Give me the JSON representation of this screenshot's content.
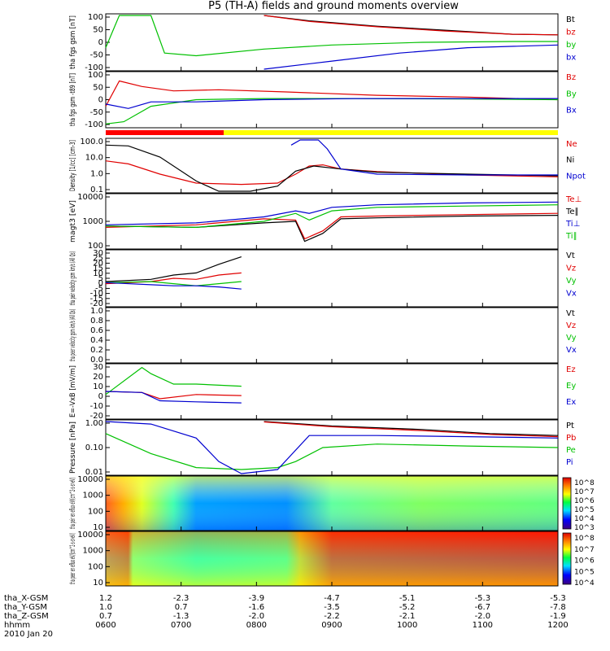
{
  "title": "P5 (TH-A) fields and ground moments overview",
  "colors": {
    "black": "#000000",
    "red": "#e00000",
    "green": "#00c000",
    "blue": "#0000d0",
    "yellow": "#ffff00"
  },
  "xaxis": {
    "times": [
      "0600",
      "0700",
      "0800",
      "0900",
      "1000",
      "1100",
      "1200"
    ],
    "rows": [
      {
        "label": "tha_X-GSM",
        "values": [
          "1.2",
          "-2.3",
          "-3.9",
          "-4.7",
          "-5.1",
          "-5.3",
          "-5.3"
        ]
      },
      {
        "label": "tha_Y-GSM",
        "values": [
          "1.0",
          "0.7",
          "-1.6",
          "-3.5",
          "-5.2",
          "-6.7",
          "-7.8"
        ]
      },
      {
        "label": "tha_Z-GSM",
        "values": [
          "0.7",
          "-1.3",
          "-2.0",
          "-2.2",
          "-2.1",
          "-2.0",
          "-1.9"
        ]
      }
    ],
    "hhmm_label": "hhmm",
    "date": "2010 Jan 20"
  },
  "chart_data": [
    {
      "type": "line",
      "ylabel": "tha fgs gsm [nT]",
      "yticks": [
        "100",
        "50",
        "0",
        "-50",
        "-100"
      ],
      "ylim": [
        -100,
        100
      ],
      "legend": [
        {
          "name": "Bt",
          "color": "black"
        },
        {
          "name": "bz",
          "color": "red"
        },
        {
          "name": "by",
          "color": "green"
        },
        {
          "name": "bx",
          "color": "blue"
        }
      ],
      "series": [
        {
          "name": "Bt",
          "color": "black",
          "x": [
            0.35,
            0.45,
            0.6,
            0.75,
            0.9,
            1.0
          ],
          "y": [
            100,
            80,
            60,
            45,
            30,
            28
          ]
        },
        {
          "name": "bz",
          "color": "red",
          "x": [
            0.35,
            0.45,
            0.6,
            0.75,
            0.9,
            1.0
          ],
          "y": [
            100,
            78,
            58,
            42,
            30,
            28
          ]
        },
        {
          "name": "by",
          "color": "green",
          "x": [
            0.0,
            0.03,
            0.1,
            0.13,
            0.2,
            0.35,
            0.5,
            0.7,
            0.9,
            1.0
          ],
          "y": [
            -20,
            100,
            100,
            -40,
            -50,
            -25,
            -10,
            0,
            3,
            3
          ]
        },
        {
          "name": "bx",
          "color": "blue",
          "x": [
            0.35,
            0.5,
            0.65,
            0.8,
            1.0
          ],
          "y": [
            -100,
            -70,
            -40,
            -20,
            -10
          ]
        }
      ]
    },
    {
      "type": "line",
      "ylabel": "tha fgs gsm -t89 [nT]",
      "yticks": [
        "100",
        "50",
        "0",
        "-50",
        "-100"
      ],
      "ylim": [
        -120,
        120
      ],
      "legend": [
        {
          "name": "Bz",
          "color": "red"
        },
        {
          "name": "By",
          "color": "green"
        },
        {
          "name": "Bx",
          "color": "blue"
        }
      ],
      "series": [
        {
          "name": "Bz",
          "color": "red",
          "x": [
            0.0,
            0.03,
            0.08,
            0.15,
            0.25,
            0.4,
            0.6,
            0.8,
            1.0
          ],
          "y": [
            -30,
            85,
            60,
            40,
            45,
            35,
            20,
            12,
            0
          ]
        },
        {
          "name": "By",
          "color": "green",
          "x": [
            0.0,
            0.04,
            0.1,
            0.2,
            0.35,
            0.55,
            0.8,
            1.0
          ],
          "y": [
            -110,
            -100,
            -30,
            0,
            5,
            5,
            3,
            0
          ]
        },
        {
          "name": "Bx",
          "color": "blue",
          "x": [
            0.0,
            0.05,
            0.1,
            0.2,
            0.35,
            0.55,
            0.8,
            1.0
          ],
          "y": [
            -20,
            -40,
            -10,
            -10,
            0,
            5,
            5,
            5
          ]
        }
      ]
    },
    {
      "type": "line",
      "ylabel": "Density [1/cc] [cm-3]",
      "yticks": [
        "100.0",
        "10.0",
        "1.0",
        "0.1"
      ],
      "ylim": [
        0.1,
        100
      ],
      "scale": "log",
      "legend": [
        {
          "name": "Ne",
          "color": "red"
        },
        {
          "name": "Ni",
          "color": "black"
        },
        {
          "name": "Npot",
          "color": "blue"
        }
      ],
      "series": [
        {
          "name": "Ne",
          "color": "red",
          "x": [
            0.0,
            0.05,
            0.12,
            0.2,
            0.3,
            0.38,
            0.42,
            0.45,
            0.48,
            0.52,
            0.6,
            0.8,
            1.0
          ],
          "y": [
            6,
            4,
            1,
            0.3,
            0.25,
            0.3,
            1,
            3,
            3.5,
            2,
            1.4,
            0.9,
            0.7
          ]
        },
        {
          "name": "Ni",
          "color": "black",
          "x": [
            0.0,
            0.05,
            0.12,
            0.2,
            0.25,
            0.32,
            0.38,
            0.42,
            0.46,
            0.52,
            0.6,
            0.8,
            1.0
          ],
          "y": [
            50,
            45,
            10,
            0.4,
            0.1,
            0.08,
            0.2,
            1.5,
            3,
            2,
            1.3,
            1,
            0.8
          ]
        },
        {
          "name": "Npot",
          "color": "blue",
          "x": [
            0.41,
            0.43,
            0.45,
            0.47,
            0.49,
            0.52,
            0.6,
            0.8,
            1.0
          ],
          "y": [
            50,
            200,
            100,
            150,
            30,
            2,
            1,
            0.9,
            0.9
          ]
        }
      ]
    },
    {
      "type": "line",
      "ylabel": "magt3 [eV]",
      "yticks": [
        "10000",
        "1000",
        "100"
      ],
      "ylim": [
        30,
        12000
      ],
      "scale": "log",
      "legend": [
        {
          "name": "Te⊥",
          "color": "red"
        },
        {
          "name": "Te∥",
          "color": "black"
        },
        {
          "name": "Ti⊥",
          "color": "blue"
        },
        {
          "name": "Ti∥",
          "color": "green"
        }
      ],
      "series": [
        {
          "name": "Te⊥",
          "color": "red",
          "x": [
            0.0,
            0.2,
            0.35,
            0.42,
            0.44,
            0.48,
            0.52,
            0.6,
            0.8,
            1.0
          ],
          "y": [
            300,
            400,
            800,
            700,
            80,
            200,
            1000,
            1100,
            1300,
            1500
          ]
        },
        {
          "name": "Te∥",
          "color": "black",
          "x": [
            0.0,
            0.2,
            0.35,
            0.42,
            0.44,
            0.48,
            0.52,
            0.6,
            0.8,
            1.0
          ],
          "y": [
            350,
            300,
            500,
            600,
            60,
            150,
            800,
            900,
            1100,
            1200
          ]
        },
        {
          "name": "Ti⊥",
          "color": "blue",
          "x": [
            0.0,
            0.2,
            0.35,
            0.42,
            0.45,
            0.5,
            0.6,
            0.8,
            1.0
          ],
          "y": [
            400,
            500,
            1000,
            2000,
            1500,
            3000,
            4000,
            5000,
            5500
          ]
        },
        {
          "name": "Ti∥",
          "color": "green",
          "x": [
            0.0,
            0.2,
            0.35,
            0.42,
            0.45,
            0.5,
            0.6,
            0.8,
            1.0
          ],
          "y": [
            350,
            300,
            600,
            1500,
            700,
            2000,
            3000,
            3500,
            4000
          ]
        }
      ]
    },
    {
      "type": "line",
      "ylabel": "tha peir velocity gsm km/s (All Qs)",
      "yticks": [
        "30",
        "25",
        "20",
        "15",
        "10",
        "5",
        "0",
        "-5",
        "-10",
        "-15",
        "-20"
      ],
      "ylim": [
        -20,
        30
      ],
      "legend": [
        {
          "name": "Vt",
          "color": "black"
        },
        {
          "name": "Vz",
          "color": "red"
        },
        {
          "name": "Vy",
          "color": "green"
        },
        {
          "name": "Vx",
          "color": "blue"
        }
      ],
      "series": [
        {
          "name": "Vt",
          "color": "black",
          "x": [
            0.0,
            0.1,
            0.15,
            0.2,
            0.25,
            0.3
          ],
          "y": [
            2,
            4,
            8,
            10,
            18,
            25
          ]
        },
        {
          "name": "Vz",
          "color": "red",
          "x": [
            0.0,
            0.1,
            0.15,
            0.2,
            0.25,
            0.3
          ],
          "y": [
            0,
            2,
            5,
            4,
            8,
            10
          ]
        },
        {
          "name": "Vy",
          "color": "green",
          "x": [
            0.0,
            0.1,
            0.15,
            0.2,
            0.25,
            0.3
          ],
          "y": [
            1,
            2,
            0,
            -2,
            0,
            2
          ]
        },
        {
          "name": "Vx",
          "color": "blue",
          "x": [
            0.0,
            0.1,
            0.15,
            0.2,
            0.25,
            0.3
          ],
          "y": [
            1,
            -1,
            -2,
            -2,
            -3,
            -5
          ]
        }
      ]
    },
    {
      "type": "line",
      "ylabel": "tha peer velocity gsm km/s (All Qs)",
      "yticks": [
        "1.0",
        "0.8",
        "0.6",
        "0.4",
        "0.2",
        "0.0"
      ],
      "ylim": [
        0,
        1
      ],
      "legend": [
        {
          "name": "Vt",
          "color": "black"
        },
        {
          "name": "Vz",
          "color": "red"
        },
        {
          "name": "Vy",
          "color": "green"
        },
        {
          "name": "Vx",
          "color": "blue"
        }
      ],
      "series": []
    },
    {
      "type": "line",
      "ylabel": "E=-VxB [mV/m]",
      "yticks": [
        "30",
        "20",
        "10",
        "0",
        "-10",
        "-20"
      ],
      "ylim": [
        -20,
        30
      ],
      "legend": [
        {
          "name": "Ez",
          "color": "red"
        },
        {
          "name": "Ey",
          "color": "green"
        },
        {
          "name": "Ex",
          "color": "blue"
        }
      ],
      "series": [
        {
          "name": "Ez",
          "color": "red",
          "x": [
            0.0,
            0.08,
            0.12,
            0.2,
            0.3
          ],
          "y": [
            5,
            4,
            -2,
            2,
            1
          ]
        },
        {
          "name": "Ey",
          "color": "green",
          "x": [
            0.0,
            0.08,
            0.1,
            0.15,
            0.2,
            0.3
          ],
          "y": [
            2,
            28,
            22,
            12,
            12,
            10
          ]
        },
        {
          "name": "Ex",
          "color": "blue",
          "x": [
            0.0,
            0.08,
            0.12,
            0.2,
            0.3
          ],
          "y": [
            5,
            4,
            -4,
            -5,
            -6
          ]
        }
      ]
    },
    {
      "type": "line",
      "ylabel": "Pressure [nPa]",
      "yticks": [
        "1.00",
        "0.10",
        "0.01"
      ],
      "ylim": [
        0.005,
        2
      ],
      "scale": "log",
      "legend": [
        {
          "name": "Pt",
          "color": "black"
        },
        {
          "name": "Pb",
          "color": "red"
        },
        {
          "name": "Pe",
          "color": "green"
        },
        {
          "name": "Pi",
          "color": "blue"
        }
      ],
      "series": [
        {
          "name": "Pt",
          "color": "black",
          "x": [
            0.35,
            0.5,
            0.7,
            0.85,
            1.0
          ],
          "y": [
            2,
            1.2,
            0.8,
            0.5,
            0.4
          ]
        },
        {
          "name": "Pb",
          "color": "red",
          "x": [
            0.35,
            0.5,
            0.7,
            0.85,
            1.0
          ],
          "y": [
            1.9,
            1.1,
            0.7,
            0.45,
            0.35
          ]
        },
        {
          "name": "Pe",
          "color": "green",
          "x": [
            0.0,
            0.1,
            0.2,
            0.3,
            0.38,
            0.42,
            0.48,
            0.6,
            0.8,
            1.0
          ],
          "y": [
            0.5,
            0.05,
            0.01,
            0.008,
            0.01,
            0.02,
            0.1,
            0.15,
            0.12,
            0.1
          ]
        },
        {
          "name": "Pi",
          "color": "blue",
          "x": [
            0.0,
            0.1,
            0.2,
            0.25,
            0.3,
            0.38,
            0.45,
            0.6,
            0.8,
            1.0
          ],
          "y": [
            3,
            1.5,
            0.3,
            0.02,
            0.005,
            0.008,
            0.4,
            0.4,
            0.35,
            0.3
          ]
        }
      ]
    },
    {
      "type": "heatmap",
      "ylabel": "tha peir en eflux eV/(cm^2-s-sr-eV)",
      "yticks": [
        "10000",
        "1000",
        "100",
        "10"
      ],
      "colorbar": [
        "10^8",
        "10^7",
        "10^6",
        "10^5",
        "10^4",
        "10^3"
      ]
    },
    {
      "type": "heatmap",
      "ylabel": "tha peer en eflux eV/(cm^2-s-sr-eV)",
      "yticks": [
        "10000",
        "1000",
        "100",
        "10"
      ],
      "colorbar": [
        "10^8",
        "10^7",
        "10^6",
        "10^5",
        "10^4"
      ]
    }
  ]
}
